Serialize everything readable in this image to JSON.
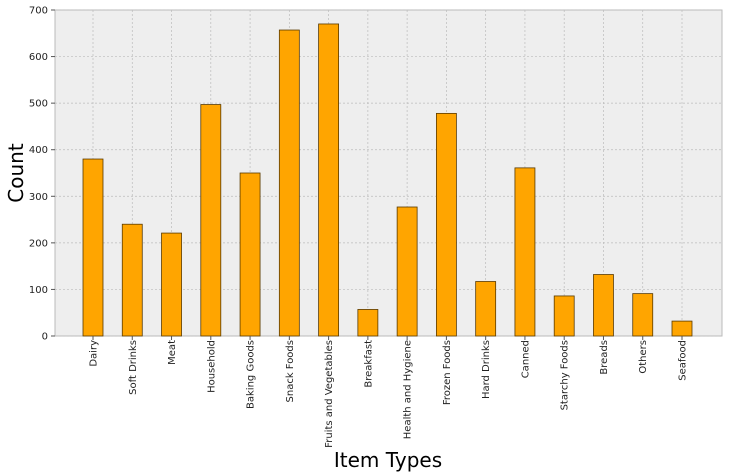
{
  "chart_data": {
    "type": "bar",
    "title": "",
    "xlabel": "Item Types",
    "ylabel": "Count",
    "categories": [
      "Dairy",
      "Soft Drinks",
      "Meat",
      "Household",
      "Baking Goods",
      "Snack Foods",
      "Fruits and Vegetables",
      "Breakfast",
      "Health and Hygiene",
      "Frozen Foods",
      "Hard Drinks",
      "Canned",
      "Starchy Foods",
      "Breads",
      "Others",
      "Seafood"
    ],
    "values": [
      380,
      240,
      221,
      497,
      350,
      657,
      670,
      57,
      277,
      478,
      117,
      361,
      86,
      132,
      91,
      32
    ],
    "ylim": [
      0,
      700
    ],
    "yticks": [
      0,
      100,
      200,
      300,
      400,
      500,
      600,
      700
    ],
    "grid": true,
    "legend": "none",
    "colors": {
      "bar_fill": "#FFA500",
      "bar_edge": "#5a3a00",
      "plot_bg": "#EEEEEE",
      "grid": "#BBBBBB"
    }
  }
}
